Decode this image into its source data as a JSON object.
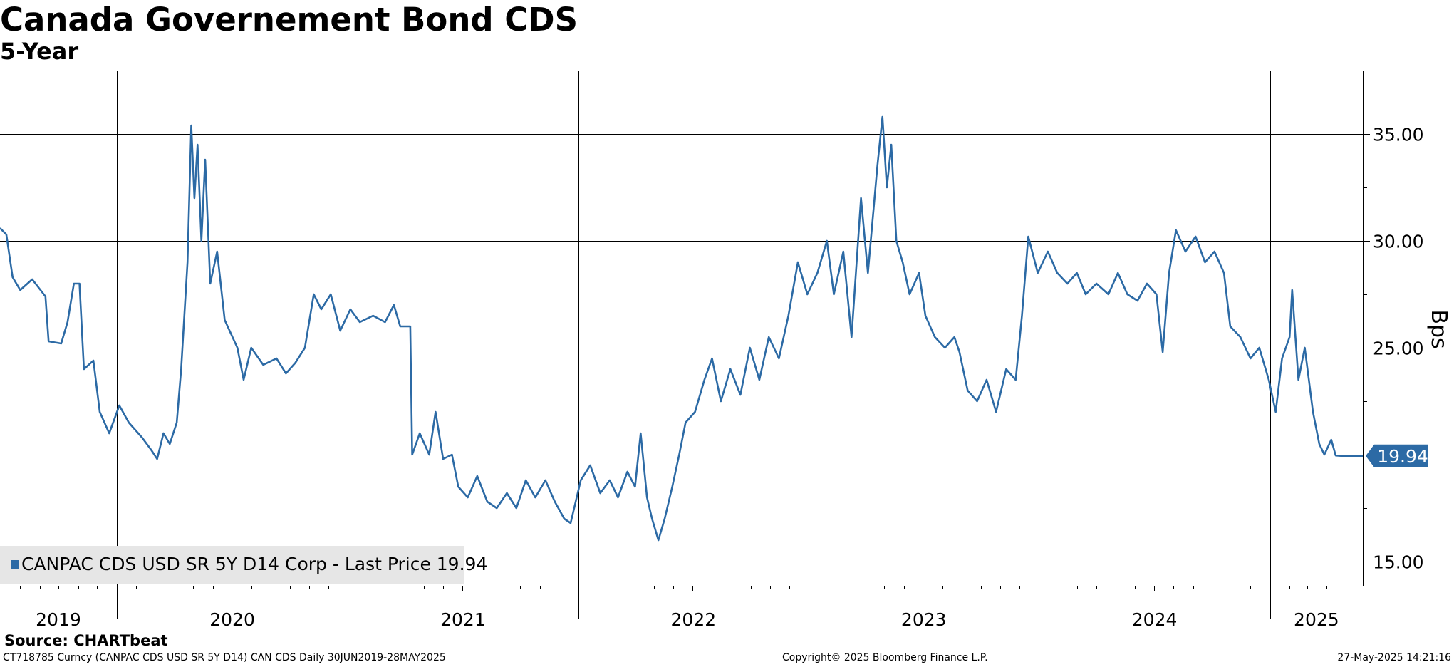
{
  "title": "Canada Governement Bond CDS",
  "subtitle": "5-Year",
  "source": "Source: CHARTbeat",
  "footer": {
    "left": "CT718785 Curncy (CANPAC CDS USD SR 5Y D14) CAN CDS  Daily 30JUN2019-28MAY2025",
    "middle": "Copyright© 2025 Bloomberg Finance L.P.",
    "right": "27-May-2025 14:21:16"
  },
  "chart_data": {
    "type": "line",
    "title": "Canada Governement Bond CDS",
    "subtitle": "5-Year",
    "ylabel": "Bps",
    "ylim": [
      14.0,
      38.0
    ],
    "y_ticks": [
      15,
      20,
      25,
      30,
      35
    ],
    "y_tick_labels": [
      "15.00",
      "20.00",
      "25.00",
      "30.00",
      "35.00"
    ],
    "x_range": [
      "2019-06-30",
      "2025-05-28"
    ],
    "x_tick_labels": [
      "2019",
      "2020",
      "2021",
      "2022",
      "2023",
      "2024",
      "2025"
    ],
    "grid": true,
    "legend": {
      "position": "bottom-left",
      "label": "CANPAC CDS USD SR 5Y D14 Corp - Last Price 19.94"
    },
    "last_value": 19.94,
    "last_value_label": "19.94",
    "line_color": "#2c6aa5",
    "series": [
      {
        "name": "CANPAC CDS USD SR 5Y D14 Corp",
        "points": [
          [
            "2019-06-30",
            30.6
          ],
          [
            "2019-07-10",
            30.3
          ],
          [
            "2019-07-20",
            28.3
          ],
          [
            "2019-08-01",
            27.7
          ],
          [
            "2019-08-20",
            28.2
          ],
          [
            "2019-09-10",
            27.4
          ],
          [
            "2019-09-15",
            25.3
          ],
          [
            "2019-10-05",
            25.2
          ],
          [
            "2019-10-15",
            26.2
          ],
          [
            "2019-10-25",
            28.0
          ],
          [
            "2019-11-03",
            28.0
          ],
          [
            "2019-11-10",
            24.0
          ],
          [
            "2019-11-25",
            24.4
          ],
          [
            "2019-12-05",
            22.0
          ],
          [
            "2019-12-20",
            21.0
          ],
          [
            "2020-01-05",
            22.3
          ],
          [
            "2020-01-20",
            21.5
          ],
          [
            "2020-02-10",
            20.8
          ],
          [
            "2020-02-25",
            20.2
          ],
          [
            "2020-03-05",
            19.8
          ],
          [
            "2020-03-15",
            21.0
          ],
          [
            "2020-03-25",
            20.5
          ],
          [
            "2020-04-05",
            21.5
          ],
          [
            "2020-04-12",
            24.0
          ],
          [
            "2020-04-22",
            29.0
          ],
          [
            "2020-04-28",
            35.4
          ],
          [
            "2020-05-03",
            32.0
          ],
          [
            "2020-05-08",
            34.5
          ],
          [
            "2020-05-14",
            30.0
          ],
          [
            "2020-05-20",
            33.8
          ],
          [
            "2020-05-28",
            28.0
          ],
          [
            "2020-06-08",
            29.5
          ],
          [
            "2020-06-20",
            26.3
          ],
          [
            "2020-07-10",
            25.0
          ],
          [
            "2020-07-20",
            23.5
          ],
          [
            "2020-08-01",
            25.0
          ],
          [
            "2020-08-20",
            24.2
          ],
          [
            "2020-09-10",
            24.5
          ],
          [
            "2020-09-25",
            23.8
          ],
          [
            "2020-10-10",
            24.3
          ],
          [
            "2020-10-25",
            25.0
          ],
          [
            "2020-11-08",
            27.5
          ],
          [
            "2020-11-20",
            26.8
          ],
          [
            "2020-12-05",
            27.5
          ],
          [
            "2020-12-20",
            25.8
          ],
          [
            "2021-01-05",
            26.8
          ],
          [
            "2021-01-20",
            26.2
          ],
          [
            "2021-02-10",
            26.5
          ],
          [
            "2021-03-01",
            26.2
          ],
          [
            "2021-03-15",
            27.0
          ],
          [
            "2021-03-25",
            26.0
          ],
          [
            "2021-04-10",
            26.0
          ],
          [
            "2021-04-13",
            20.0
          ],
          [
            "2021-04-25",
            21.0
          ],
          [
            "2021-05-10",
            20.0
          ],
          [
            "2021-05-20",
            22.0
          ],
          [
            "2021-06-01",
            19.8
          ],
          [
            "2021-06-15",
            20.0
          ],
          [
            "2021-06-25",
            18.5
          ],
          [
            "2021-07-10",
            18.0
          ],
          [
            "2021-07-25",
            19.0
          ],
          [
            "2021-08-10",
            17.8
          ],
          [
            "2021-08-25",
            17.5
          ],
          [
            "2021-09-10",
            18.2
          ],
          [
            "2021-09-25",
            17.5
          ],
          [
            "2021-10-10",
            18.8
          ],
          [
            "2021-10-25",
            18.0
          ],
          [
            "2021-11-10",
            18.8
          ],
          [
            "2021-11-25",
            17.8
          ],
          [
            "2021-12-10",
            17.0
          ],
          [
            "2021-12-20",
            16.8
          ],
          [
            "2022-01-05",
            18.8
          ],
          [
            "2022-01-20",
            19.5
          ],
          [
            "2022-02-05",
            18.2
          ],
          [
            "2022-02-20",
            18.8
          ],
          [
            "2022-03-05",
            18.0
          ],
          [
            "2022-03-20",
            19.2
          ],
          [
            "2022-04-01",
            18.5
          ],
          [
            "2022-04-10",
            21.0
          ],
          [
            "2022-04-20",
            18.0
          ],
          [
            "2022-04-28",
            17.0
          ],
          [
            "2022-05-08",
            16.0
          ],
          [
            "2022-05-18",
            17.0
          ],
          [
            "2022-05-30",
            18.5
          ],
          [
            "2022-06-10",
            20.0
          ],
          [
            "2022-06-20",
            21.5
          ],
          [
            "2022-07-05",
            22.0
          ],
          [
            "2022-07-20",
            23.5
          ],
          [
            "2022-08-01",
            24.5
          ],
          [
            "2022-08-15",
            22.5
          ],
          [
            "2022-08-30",
            24.0
          ],
          [
            "2022-09-15",
            22.8
          ],
          [
            "2022-09-30",
            25.0
          ],
          [
            "2022-10-15",
            23.5
          ],
          [
            "2022-10-30",
            25.5
          ],
          [
            "2022-11-15",
            24.5
          ],
          [
            "2022-11-30",
            26.5
          ],
          [
            "2022-12-15",
            29.0
          ],
          [
            "2022-12-30",
            27.5
          ],
          [
            "2023-01-15",
            28.5
          ],
          [
            "2023-01-30",
            30.0
          ],
          [
            "2023-02-10",
            27.5
          ],
          [
            "2023-02-25",
            29.5
          ],
          [
            "2023-03-10",
            25.5
          ],
          [
            "2023-03-25",
            32.0
          ],
          [
            "2023-04-05",
            28.5
          ],
          [
            "2023-04-20",
            33.5
          ],
          [
            "2023-04-28",
            35.8
          ],
          [
            "2023-05-05",
            32.5
          ],
          [
            "2023-05-12",
            34.5
          ],
          [
            "2023-05-20",
            30.0
          ],
          [
            "2023-05-30",
            29.0
          ],
          [
            "2023-06-10",
            27.5
          ],
          [
            "2023-06-25",
            28.5
          ],
          [
            "2023-07-05",
            26.5
          ],
          [
            "2023-07-20",
            25.5
          ],
          [
            "2023-08-05",
            25.0
          ],
          [
            "2023-08-20",
            25.5
          ],
          [
            "2023-08-28",
            24.8
          ],
          [
            "2023-09-10",
            23.0
          ],
          [
            "2023-09-25",
            22.5
          ],
          [
            "2023-10-10",
            23.5
          ],
          [
            "2023-10-25",
            22.0
          ],
          [
            "2023-11-10",
            24.0
          ],
          [
            "2023-11-25",
            23.5
          ],
          [
            "2023-12-05",
            26.5
          ],
          [
            "2023-12-15",
            30.2
          ],
          [
            "2023-12-30",
            28.5
          ],
          [
            "2024-01-15",
            29.5
          ],
          [
            "2024-01-30",
            28.5
          ],
          [
            "2024-02-15",
            28.0
          ],
          [
            "2024-03-01",
            28.5
          ],
          [
            "2024-03-15",
            27.5
          ],
          [
            "2024-04-01",
            28.0
          ],
          [
            "2024-04-20",
            27.5
          ],
          [
            "2024-05-05",
            28.5
          ],
          [
            "2024-05-20",
            27.5
          ],
          [
            "2024-06-05",
            27.2
          ],
          [
            "2024-06-20",
            28.0
          ],
          [
            "2024-07-05",
            27.5
          ],
          [
            "2024-07-15",
            24.8
          ],
          [
            "2024-07-25",
            28.5
          ],
          [
            "2024-08-05",
            30.5
          ],
          [
            "2024-08-20",
            29.5
          ],
          [
            "2024-09-05",
            30.2
          ],
          [
            "2024-09-20",
            29.0
          ],
          [
            "2024-10-05",
            29.5
          ],
          [
            "2024-10-20",
            28.5
          ],
          [
            "2024-10-30",
            26.0
          ],
          [
            "2024-11-15",
            25.5
          ],
          [
            "2024-12-01",
            24.5
          ],
          [
            "2024-12-15",
            25.0
          ],
          [
            "2024-12-30",
            23.5
          ],
          [
            "2025-01-10",
            22.0
          ],
          [
            "2025-01-20",
            24.5
          ],
          [
            "2025-02-01",
            25.5
          ],
          [
            "2025-02-05",
            27.7
          ],
          [
            "2025-02-15",
            23.5
          ],
          [
            "2025-02-25",
            25.0
          ],
          [
            "2025-03-10",
            22.0
          ],
          [
            "2025-03-20",
            20.5
          ],
          [
            "2025-03-28",
            20.0
          ],
          [
            "2025-04-08",
            20.7
          ],
          [
            "2025-04-15",
            19.96
          ],
          [
            "2025-04-25",
            19.94
          ],
          [
            "2025-05-28",
            19.94
          ]
        ]
      }
    ]
  }
}
